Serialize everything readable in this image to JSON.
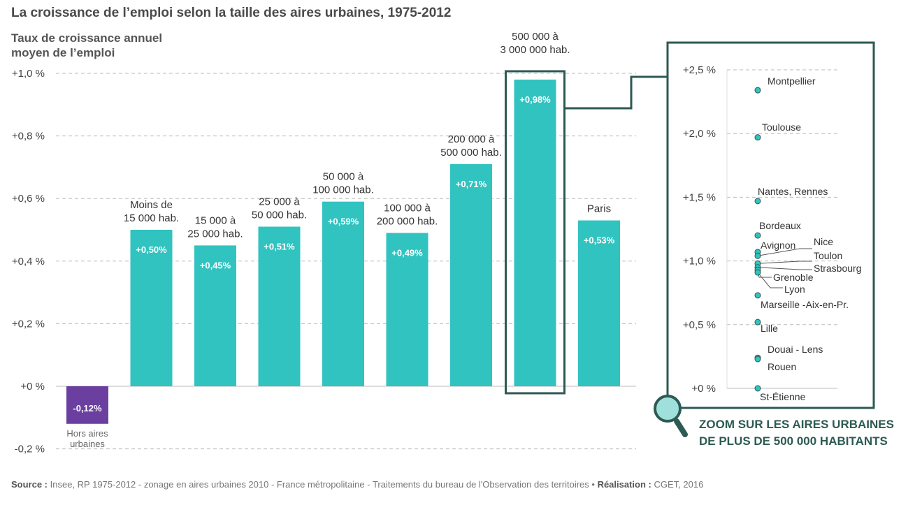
{
  "title": "La croissance de l’emploi selon la taille des aires urbaines, 1975-2012",
  "ylabel_lines": [
    "Taux de croissance annuel",
    "moyen de l’emploi"
  ],
  "zoom_title_lines": [
    "ZOOM SUR LES AIRES URBAINES",
    "DE PLUS DE 500 000 HABITANTS"
  ],
  "source": {
    "label": "Source :",
    "text": "Insee, RP 1975-2012 - zonage en aires urbaines 2010 - France métropolitaine - Traitements du bureau de l'Observation des territoires •",
    "credit_label": "Réalisation :",
    "credit_text": "CGET, 2016"
  },
  "colors": {
    "bar": "#31c3c0",
    "bar_negative": "#6b3fa0",
    "frame": "#2d5a52",
    "dot": "#31c3c0",
    "grid": "#bbbbbb"
  },
  "chart_data": [
    {
      "type": "bar",
      "title": "La croissance de l’emploi selon la taille des aires urbaines, 1975-2012",
      "ylabel": "Taux de croissance annuel moyen de l’emploi",
      "ylim": [
        -0.2,
        1.0
      ],
      "yticks": [
        {
          "value": 1.0,
          "label": "+1,0 %"
        },
        {
          "value": 0.8,
          "label": "+0,8 %"
        },
        {
          "value": 0.6,
          "label": "+0,6 %"
        },
        {
          "value": 0.4,
          "label": "+0,4 %"
        },
        {
          "value": 0.2,
          "label": "+0,2 %"
        },
        {
          "value": 0.0,
          "label": "+0 %"
        },
        {
          "value": -0.2,
          "label": "-0,2 %"
        }
      ],
      "grid": true,
      "bars": [
        {
          "category": [
            "Hors aires",
            "urbaines"
          ],
          "value": -0.12,
          "label": "-0,12%",
          "negative": true
        },
        {
          "category": [
            "Moins de",
            "15 000 hab."
          ],
          "value": 0.5,
          "label": "+0,50%"
        },
        {
          "category": [
            "15 000 à",
            "25 000 hab."
          ],
          "value": 0.45,
          "label": "+0,45%"
        },
        {
          "category": [
            "25 000 à",
            "50 000 hab."
          ],
          "value": 0.51,
          "label": "+0,51%"
        },
        {
          "category": [
            "50 000 à",
            "100 000 hab."
          ],
          "value": 0.59,
          "label": "+0,59%"
        },
        {
          "category": [
            "100 000 à",
            "200 000 hab."
          ],
          "value": 0.49,
          "label": "+0,49%"
        },
        {
          "category": [
            "200 000 à",
            "500 000 hab."
          ],
          "value": 0.71,
          "label": "+0,71%"
        },
        {
          "category": [
            "500 000 à",
            "3 000 000 hab."
          ],
          "value": 0.98,
          "label": "+0,98%",
          "highlight": true
        },
        {
          "category": [
            "Paris"
          ],
          "value": 0.53,
          "label": "+0,53%"
        }
      ]
    },
    {
      "type": "scatter",
      "title": "ZOOM SUR LES AIRES URBAINES DE PLUS DE 500 000 HABITANTS",
      "ylim": [
        0,
        2.5
      ],
      "yticks": [
        {
          "value": 2.5,
          "label": "+2,5 %"
        },
        {
          "value": 2.0,
          "label": "+2,0 %"
        },
        {
          "value": 1.5,
          "label": "+1,5 %"
        },
        {
          "value": 1.0,
          "label": "+1,0 %"
        },
        {
          "value": 0.5,
          "label": "+0,5 %"
        },
        {
          "value": 0.0,
          "label": "+0 %"
        }
      ],
      "grid": true,
      "points": [
        {
          "name": "Montpellier",
          "value": 2.34
        },
        {
          "name": "Toulouse",
          "value": 1.97
        },
        {
          "name": "Nantes, Rennes",
          "value": 1.47
        },
        {
          "name": "Bordeaux",
          "value": 1.2
        },
        {
          "name": "Avignon",
          "value": 1.07
        },
        {
          "name": "Nice",
          "value": 1.04
        },
        {
          "name": "Toulon",
          "value": 0.98
        },
        {
          "name": "Strasbourg",
          "value": 0.95
        },
        {
          "name": "Grenoble",
          "value": 0.93
        },
        {
          "name": "Lyon",
          "value": 0.91
        },
        {
          "name": "Marseille -Aix-en-Pr.",
          "value": 0.73
        },
        {
          "name": "Lille",
          "value": 0.52
        },
        {
          "name": "Douai - Lens",
          "value": 0.24
        },
        {
          "name": "Rouen",
          "value": 0.23
        },
        {
          "name": "St-Étienne",
          "value": 0.0
        }
      ]
    }
  ]
}
